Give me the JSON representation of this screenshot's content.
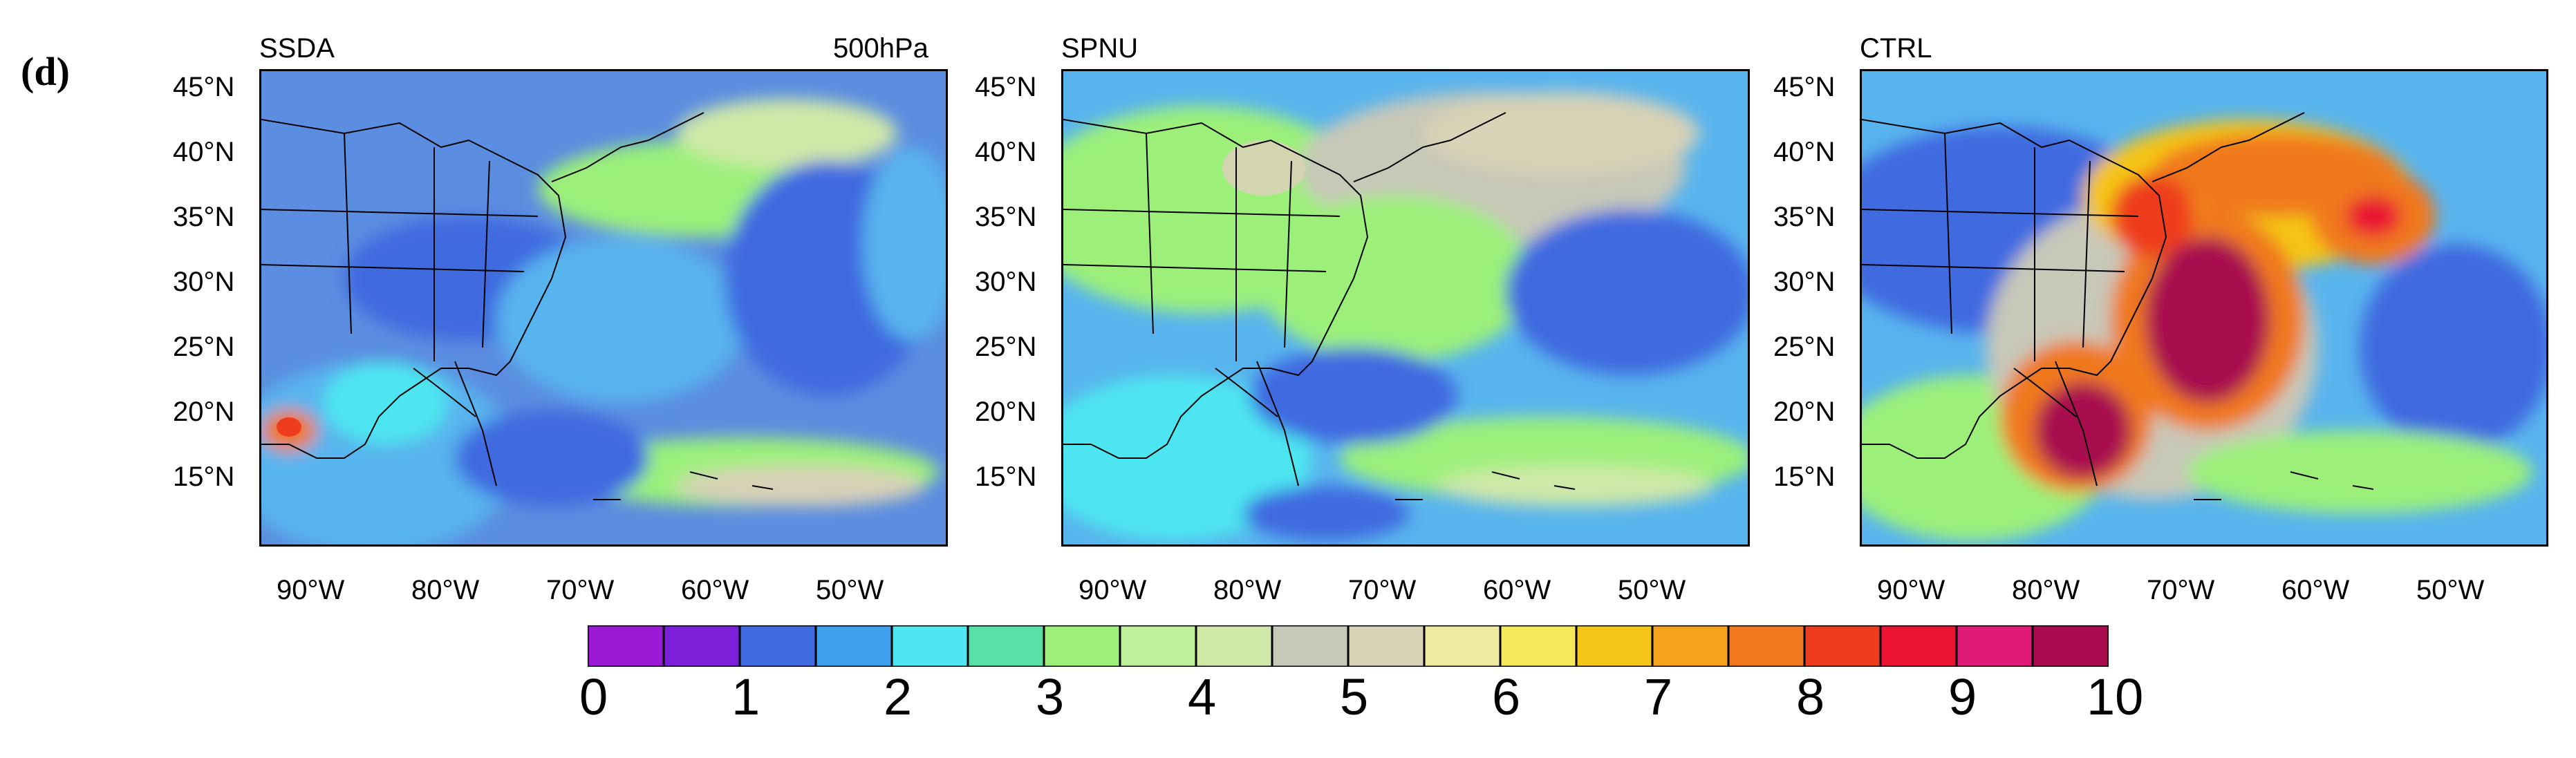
{
  "figure_label": "(d)",
  "panels": [
    {
      "title_left": "SSDA",
      "title_right": "500hPa"
    },
    {
      "title_left": "SPNU",
      "title_right": ""
    },
    {
      "title_left": "CTRL",
      "title_right": ""
    }
  ],
  "lat_ticks": [
    "45°N",
    "40°N",
    "35°N",
    "30°N",
    "25°N",
    "20°N",
    "15°N"
  ],
  "lon_ticks": [
    "90°W",
    "80°W",
    "70°W",
    "60°W",
    "50°W"
  ],
  "colorbar": {
    "labels": [
      "0",
      "1",
      "2",
      "3",
      "4",
      "5",
      "6",
      "7",
      "8",
      "9",
      "10"
    ],
    "colors": [
      "#9a1ad6",
      "#7b20d8",
      "#3f6ae0",
      "#3fa0ef",
      "#4ee6f0",
      "#58e0a6",
      "#9cf07a",
      "#bff09a",
      "#cfe8a8",
      "#c8c8b8",
      "#d8d2b6",
      "#f0eaa0",
      "#f5e85a",
      "#f5c518",
      "#f5a21c",
      "#f0781e",
      "#ee3c1e",
      "#ea1430",
      "#e01a78",
      "#a80c4e"
    ]
  }
}
